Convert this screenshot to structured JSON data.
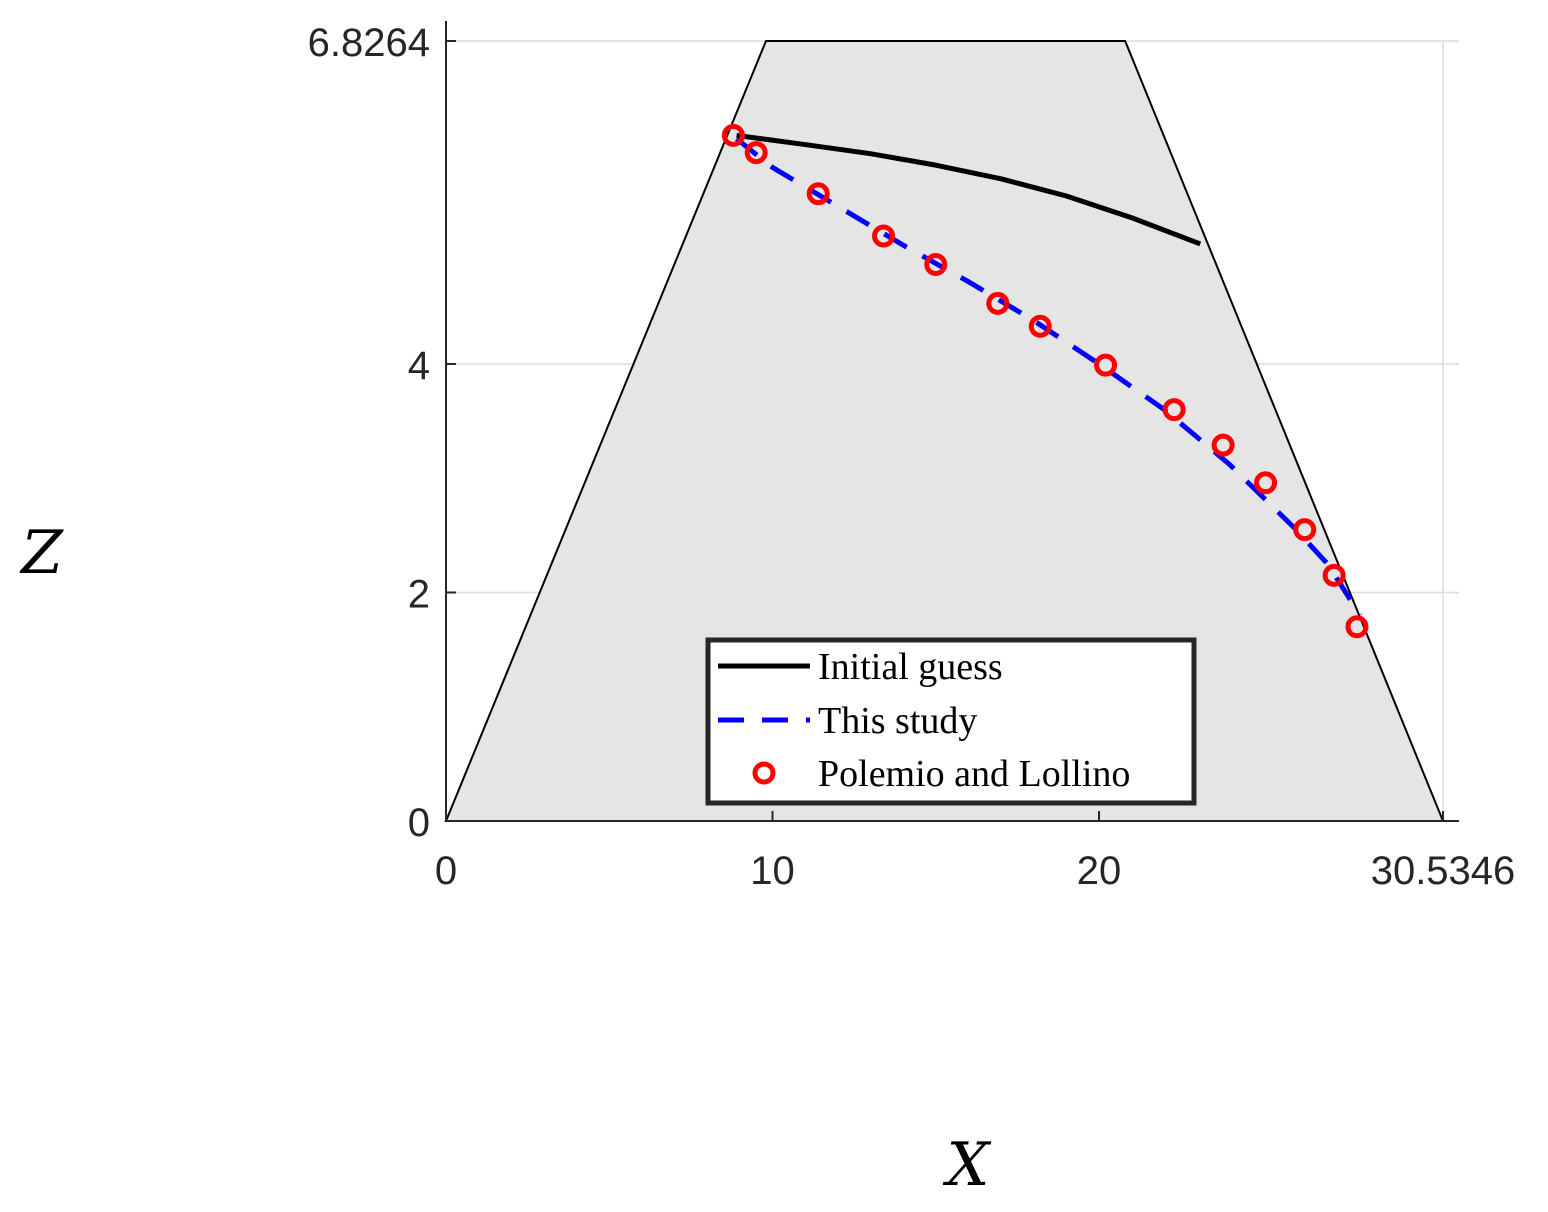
{
  "chart_data": {
    "type": "line",
    "title": "",
    "xlabel": "X",
    "ylabel": "Z",
    "xlim": [
      0,
      30.5346
    ],
    "ylim": [
      0,
      6.8264
    ],
    "xticks": [
      0,
      10,
      20,
      30.5346
    ],
    "xtick_labels": [
      "0",
      "10",
      "20",
      "30.5346"
    ],
    "yticks": [
      0,
      2,
      4,
      6.8264
    ],
    "ytick_labels": [
      "0",
      "2",
      "4",
      "6.8264"
    ],
    "grid": true,
    "legend_position": "bottom-center",
    "slope_polygon": {
      "fill": "#e5e5e5",
      "stroke": "#000000",
      "x": [
        0,
        9.8,
        20.8,
        30.5346
      ],
      "z": [
        0,
        6.8264,
        6.8264,
        0
      ]
    },
    "series": [
      {
        "name": "Initial guess",
        "style": "solid",
        "color": "#000000",
        "x": [
          8.9,
          11,
          13,
          15,
          17,
          19,
          21,
          23.1
        ],
        "z": [
          6.0,
          5.92,
          5.84,
          5.74,
          5.62,
          5.47,
          5.28,
          5.05
        ]
      },
      {
        "name": "This study",
        "style": "dashed",
        "color": "#0000ff",
        "x": [
          8.9,
          10,
          12,
          14,
          16,
          18,
          20,
          22,
          24,
          26,
          27,
          28
        ],
        "z": [
          5.97,
          5.72,
          5.38,
          5.04,
          4.72,
          4.38,
          4.0,
          3.6,
          3.12,
          2.56,
          2.25,
          1.8
        ]
      },
      {
        "name": "Polemio and Lollino",
        "style": "markers",
        "color": "#ff0000",
        "x": [
          8.8,
          9.5,
          11.4,
          13.4,
          15.0,
          16.9,
          18.2,
          20.2,
          22.3,
          23.8,
          25.1,
          26.3,
          27.2,
          27.9
        ],
        "z": [
          6.0,
          5.85,
          5.49,
          5.12,
          4.87,
          4.53,
          4.33,
          3.99,
          3.6,
          3.29,
          2.96,
          2.55,
          2.15,
          1.7
        ]
      }
    ]
  }
}
